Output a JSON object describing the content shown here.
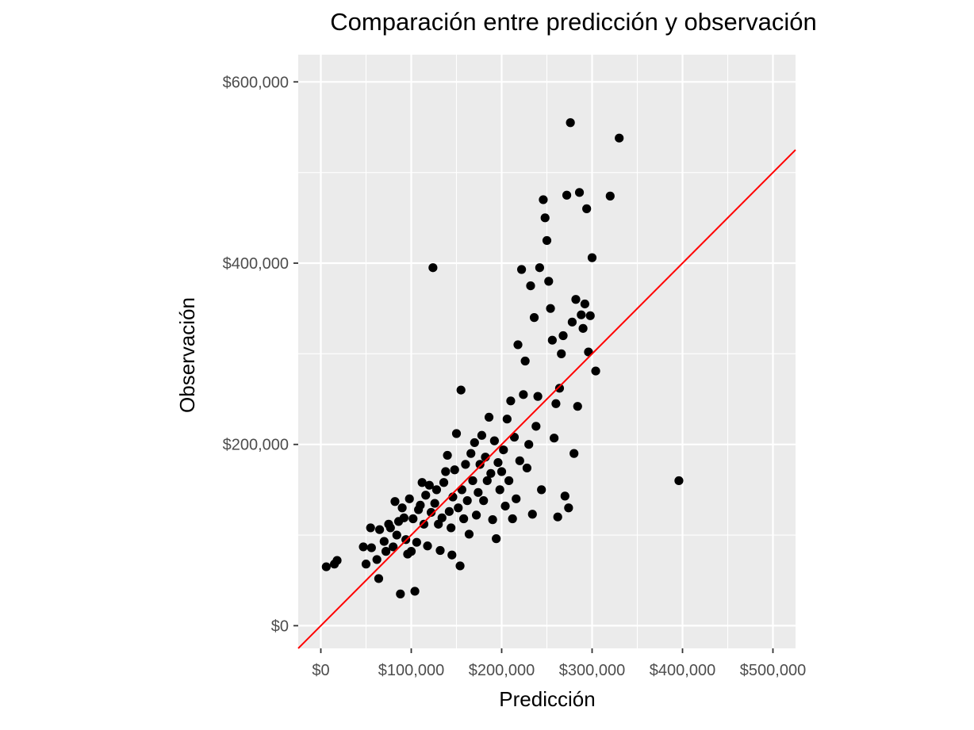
{
  "chart_data": {
    "type": "scatter",
    "title": "Comparación entre predicción y observación",
    "xlabel": "Predicción",
    "ylabel": "Observación",
    "xlim": [
      -25000,
      525000
    ],
    "ylim": [
      -25000,
      630000
    ],
    "x_ticks": [
      0,
      100000,
      200000,
      300000,
      400000,
      500000
    ],
    "x_tick_labels": [
      "$0",
      "$100,000",
      "$200,000",
      "$300,000",
      "$400,000",
      "$500,000"
    ],
    "y_ticks": [
      0,
      200000,
      400000,
      600000
    ],
    "y_tick_labels": [
      "$0",
      "$200,000",
      "$400,000",
      "$600,000"
    ],
    "grid": true,
    "reference_line": {
      "slope": 1,
      "intercept": 0,
      "color": "#ff0000"
    },
    "series": [
      {
        "points": [
          [
            6000,
            65000
          ],
          [
            15000,
            68000
          ],
          [
            18000,
            72000
          ],
          [
            47000,
            87000
          ],
          [
            50000,
            68000
          ],
          [
            55000,
            108000
          ],
          [
            56000,
            86000
          ],
          [
            62000,
            73000
          ],
          [
            64000,
            52000
          ],
          [
            65000,
            106000
          ],
          [
            70000,
            93000
          ],
          [
            72000,
            82000
          ],
          [
            75000,
            112000
          ],
          [
            77000,
            108000
          ],
          [
            80000,
            87000
          ],
          [
            82000,
            137000
          ],
          [
            84000,
            100000
          ],
          [
            86000,
            115000
          ],
          [
            88000,
            35000
          ],
          [
            90000,
            130000
          ],
          [
            92000,
            119000
          ],
          [
            94000,
            95000
          ],
          [
            96000,
            79000
          ],
          [
            98000,
            140000
          ],
          [
            100000,
            82000
          ],
          [
            102000,
            118000
          ],
          [
            104000,
            38000
          ],
          [
            106000,
            92000
          ],
          [
            108000,
            128000
          ],
          [
            110000,
            133000
          ],
          [
            112000,
            158000
          ],
          [
            114000,
            112000
          ],
          [
            116000,
            144000
          ],
          [
            118000,
            88000
          ],
          [
            120000,
            155000
          ],
          [
            122000,
            125000
          ],
          [
            124000,
            395000
          ],
          [
            126000,
            135000
          ],
          [
            128000,
            150000
          ],
          [
            130000,
            112000
          ],
          [
            132000,
            83000
          ],
          [
            134000,
            119000
          ],
          [
            136000,
            158000
          ],
          [
            138000,
            170000
          ],
          [
            140000,
            188000
          ],
          [
            142000,
            126000
          ],
          [
            144000,
            108000
          ],
          [
            145000,
            78000
          ],
          [
            146000,
            142000
          ],
          [
            148000,
            172000
          ],
          [
            150000,
            212000
          ],
          [
            152000,
            130000
          ],
          [
            154000,
            66000
          ],
          [
            155000,
            260000
          ],
          [
            156000,
            150000
          ],
          [
            158000,
            118000
          ],
          [
            160000,
            178000
          ],
          [
            162000,
            138000
          ],
          [
            164000,
            101000
          ],
          [
            166000,
            190000
          ],
          [
            168000,
            160000
          ],
          [
            170000,
            202000
          ],
          [
            172000,
            122000
          ],
          [
            174000,
            147000
          ],
          [
            176000,
            178000
          ],
          [
            178000,
            210000
          ],
          [
            180000,
            138000
          ],
          [
            182000,
            186000
          ],
          [
            184000,
            160000
          ],
          [
            186000,
            230000
          ],
          [
            188000,
            168000
          ],
          [
            190000,
            117000
          ],
          [
            192000,
            204000
          ],
          [
            194000,
            96000
          ],
          [
            196000,
            180000
          ],
          [
            198000,
            150000
          ],
          [
            200000,
            170000
          ],
          [
            202000,
            194000
          ],
          [
            204000,
            132000
          ],
          [
            206000,
            228000
          ],
          [
            208000,
            160000
          ],
          [
            210000,
            248000
          ],
          [
            212000,
            118000
          ],
          [
            214000,
            208000
          ],
          [
            216000,
            140000
          ],
          [
            218000,
            310000
          ],
          [
            220000,
            182000
          ],
          [
            222000,
            393000
          ],
          [
            224000,
            255000
          ],
          [
            226000,
            292000
          ],
          [
            228000,
            174000
          ],
          [
            230000,
            200000
          ],
          [
            232000,
            375000
          ],
          [
            234000,
            123000
          ],
          [
            236000,
            340000
          ],
          [
            238000,
            220000
          ],
          [
            240000,
            253000
          ],
          [
            242000,
            395000
          ],
          [
            244000,
            150000
          ],
          [
            246000,
            470000
          ],
          [
            248000,
            450000
          ],
          [
            250000,
            425000
          ],
          [
            252000,
            380000
          ],
          [
            254000,
            350000
          ],
          [
            256000,
            315000
          ],
          [
            258000,
            207000
          ],
          [
            260000,
            245000
          ],
          [
            262000,
            120000
          ],
          [
            264000,
            262000
          ],
          [
            266000,
            300000
          ],
          [
            268000,
            320000
          ],
          [
            270000,
            143000
          ],
          [
            272000,
            475000
          ],
          [
            274000,
            130000
          ],
          [
            276000,
            555000
          ],
          [
            278000,
            335000
          ],
          [
            280000,
            190000
          ],
          [
            282000,
            360000
          ],
          [
            284000,
            242000
          ],
          [
            286000,
            478000
          ],
          [
            288000,
            343000
          ],
          [
            290000,
            328000
          ],
          [
            292000,
            355000
          ],
          [
            294000,
            460000
          ],
          [
            296000,
            302000
          ],
          [
            298000,
            342000
          ],
          [
            300000,
            406000
          ],
          [
            304000,
            281000
          ],
          [
            320000,
            474000
          ],
          [
            330000,
            538000
          ],
          [
            396000,
            160000
          ]
        ]
      }
    ]
  }
}
